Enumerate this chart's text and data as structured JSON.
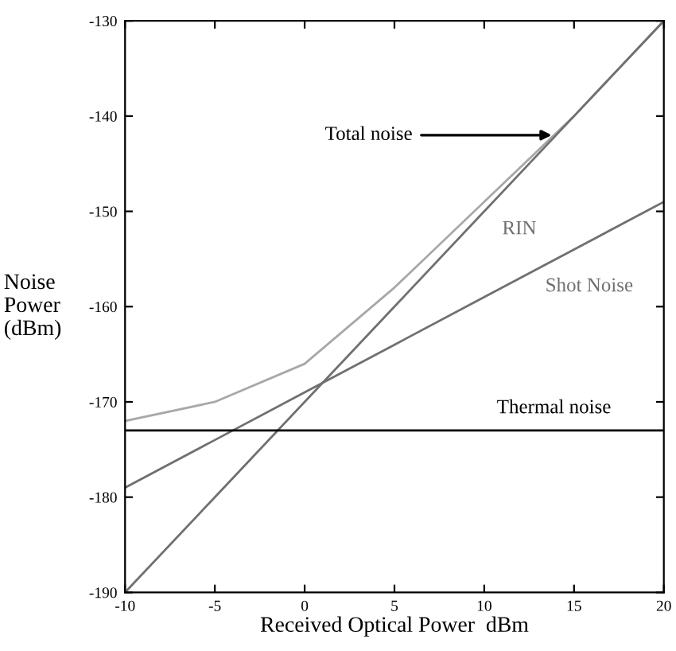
{
  "chart_data": {
    "type": "line",
    "xlabel": "Received Optical Power  dBm",
    "ylabel": "Noise\nPower\n(dBm)",
    "x": [
      -10,
      -5,
      0,
      5,
      10,
      15,
      20
    ],
    "series": [
      {
        "color": "#a8a8a8",
        "values": [
          -172,
          -170,
          -166,
          -158,
          -149,
          -140,
          -130
        ]
      },
      {
        "name": "RIN",
        "color": "#707070",
        "values": [
          -190,
          -180,
          -170,
          -160,
          -150,
          -140,
          -130
        ]
      },
      {
        "name": "Shot Noise",
        "color": "#707070",
        "values": [
          -179,
          -174,
          -169,
          -164,
          -159,
          -154,
          -149
        ]
      },
      {
        "name": "Thermal noise",
        "color": "#000000",
        "values": [
          -173,
          -173,
          -173,
          -173,
          -173,
          -173,
          -173
        ]
      }
    ],
    "annotations": [
      {
        "text": "Total noise",
        "x": 14,
        "y": -142
      }
    ],
    "xlim": [
      -10,
      20
    ],
    "ylim": [
      -190,
      -130
    ],
    "xticks": [
      -10,
      -5,
      0,
      5,
      10,
      15,
      20
    ],
    "yticks": [
      -190,
      -180,
      -170,
      -160,
      -150,
      -140,
      -130
    ],
    "grid": false
  }
}
